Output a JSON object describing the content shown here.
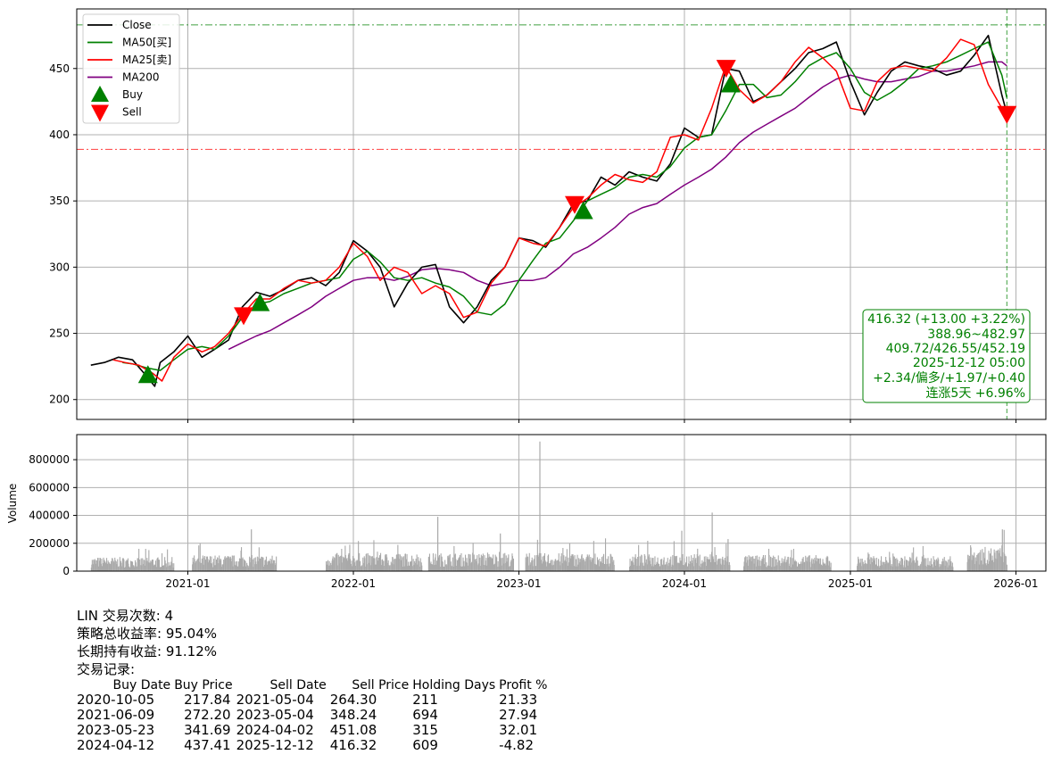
{
  "chart_data": [
    {
      "type": "line",
      "title": "",
      "xlabel": "",
      "ylabel": "",
      "ylim": [
        185,
        495
      ],
      "xlim": [
        "2020-05-01",
        "2026-03-08"
      ],
      "grid": true,
      "legend_placement": "top-left",
      "x_tick_labels": [
        "2021-01",
        "2022-01",
        "2023-01",
        "2024-01",
        "2025-01",
        "2026-01"
      ],
      "y_tick_labels": [
        "200",
        "250",
        "300",
        "350",
        "400",
        "450"
      ],
      "series": [
        {
          "name": "Close",
          "color": "#000000",
          "x": [
            "2020-06-01",
            "2020-07-01",
            "2020-08-01",
            "2020-09-01",
            "2020-10-01",
            "2020-10-20",
            "2020-11-01",
            "2020-12-01",
            "2021-01-01",
            "2021-02-01",
            "2021-03-01",
            "2021-04-01",
            "2021-05-01",
            "2021-06-01",
            "2021-07-01",
            "2021-08-01",
            "2021-09-01",
            "2021-10-01",
            "2021-11-01",
            "2021-12-01",
            "2022-01-01",
            "2022-02-01",
            "2022-03-01",
            "2022-04-01",
            "2022-05-01",
            "2022-06-01",
            "2022-07-01",
            "2022-08-01",
            "2022-09-01",
            "2022-10-01",
            "2022-11-01",
            "2022-12-01",
            "2023-01-01",
            "2023-02-01",
            "2023-03-01",
            "2023-04-01",
            "2023-05-01",
            "2023-06-01",
            "2023-07-01",
            "2023-08-01",
            "2023-09-01",
            "2023-10-01",
            "2023-11-01",
            "2023-12-01",
            "2024-01-01",
            "2024-02-01",
            "2024-03-01",
            "2024-04-01",
            "2024-05-01",
            "2024-06-01",
            "2024-07-01",
            "2024-08-01",
            "2024-09-01",
            "2024-10-01",
            "2024-11-01",
            "2024-12-01",
            "2025-01-01",
            "2025-02-01",
            "2025-03-01",
            "2025-04-01",
            "2025-05-01",
            "2025-06-01",
            "2025-07-01",
            "2025-08-01",
            "2025-09-01",
            "2025-10-01",
            "2025-11-01",
            "2025-12-01",
            "2025-12-12"
          ],
          "y": [
            226,
            228,
            232,
            230,
            218,
            210,
            228,
            236,
            248,
            232,
            238,
            245,
            270,
            281,
            278,
            283,
            290,
            292,
            286,
            296,
            320,
            312,
            300,
            270,
            288,
            300,
            302,
            270,
            258,
            270,
            290,
            300,
            322,
            320,
            315,
            330,
            348,
            350,
            368,
            362,
            372,
            368,
            365,
            378,
            405,
            398,
            400,
            450,
            448,
            425,
            430,
            440,
            450,
            462,
            465,
            470,
            440,
            415,
            432,
            448,
            455,
            452,
            450,
            445,
            448,
            460,
            475,
            430,
            416
          ]
        },
        {
          "name": "MA50[买]",
          "color": "#008000",
          "x": [
            "2020-08-10",
            "2020-09-01",
            "2020-10-01",
            "2020-11-01",
            "2020-12-01",
            "2021-01-01",
            "2021-02-01",
            "2021-03-01",
            "2021-04-01",
            "2021-05-01",
            "2021-06-01",
            "2021-07-01",
            "2021-08-01",
            "2021-09-01",
            "2021-10-01",
            "2021-11-01",
            "2021-12-01",
            "2022-01-01",
            "2022-02-01",
            "2022-03-01",
            "2022-04-01",
            "2022-05-01",
            "2022-06-01",
            "2022-07-01",
            "2022-08-01",
            "2022-09-01",
            "2022-10-01",
            "2022-11-01",
            "2022-12-01",
            "2023-01-01",
            "2023-02-01",
            "2023-03-01",
            "2023-04-01",
            "2023-05-01",
            "2023-06-01",
            "2023-07-01",
            "2023-08-01",
            "2023-09-01",
            "2023-10-01",
            "2023-11-01",
            "2023-12-01",
            "2024-01-01",
            "2024-02-01",
            "2024-03-01",
            "2024-04-01",
            "2024-05-01",
            "2024-06-01",
            "2024-07-01",
            "2024-08-01",
            "2024-09-01",
            "2024-10-01",
            "2024-11-01",
            "2024-12-01",
            "2025-01-01",
            "2025-02-01",
            "2025-03-01",
            "2025-04-01",
            "2025-05-01",
            "2025-06-01",
            "2025-07-01",
            "2025-08-01",
            "2025-09-01",
            "2025-10-01",
            "2025-11-01",
            "2025-12-01",
            "2025-12-12"
          ],
          "y": [
            228,
            227,
            224,
            222,
            230,
            238,
            240,
            238,
            248,
            262,
            272,
            274,
            280,
            284,
            288,
            290,
            292,
            306,
            312,
            304,
            292,
            290,
            292,
            288,
            285,
            278,
            266,
            264,
            272,
            290,
            305,
            318,
            322,
            335,
            350,
            355,
            360,
            368,
            370,
            368,
            376,
            390,
            398,
            400,
            418,
            438,
            438,
            428,
            430,
            440,
            452,
            458,
            462,
            450,
            432,
            426,
            432,
            440,
            450,
            452,
            455,
            460,
            465,
            470,
            445,
            428
          ]
        },
        {
          "name": "MA25[卖]",
          "color": "#ff0000",
          "x": [
            "2020-07-20",
            "2020-08-15",
            "2020-09-15",
            "2020-10-15",
            "2020-11-05",
            "2020-12-01",
            "2021-01-01",
            "2021-02-01",
            "2021-03-01",
            "2021-04-01",
            "2021-05-01",
            "2021-06-01",
            "2021-07-01",
            "2021-08-01",
            "2021-09-01",
            "2021-10-01",
            "2021-11-01",
            "2021-12-01",
            "2022-01-01",
            "2022-02-01",
            "2022-03-01",
            "2022-04-01",
            "2022-05-01",
            "2022-06-01",
            "2022-07-01",
            "2022-08-01",
            "2022-09-01",
            "2022-10-01",
            "2022-11-01",
            "2022-12-01",
            "2023-01-01",
            "2023-02-01",
            "2023-03-01",
            "2023-04-01",
            "2023-05-01",
            "2023-06-01",
            "2023-07-01",
            "2023-08-01",
            "2023-09-01",
            "2023-10-01",
            "2023-11-01",
            "2023-12-01",
            "2024-01-01",
            "2024-02-01",
            "2024-03-01",
            "2024-04-01",
            "2024-05-01",
            "2024-06-01",
            "2024-07-01",
            "2024-08-01",
            "2024-09-01",
            "2024-10-01",
            "2024-11-01",
            "2024-12-01",
            "2025-01-01",
            "2025-02-01",
            "2025-03-01",
            "2025-04-01",
            "2025-05-01",
            "2025-06-01",
            "2025-07-01",
            "2025-08-01",
            "2025-09-01",
            "2025-10-01",
            "2025-11-01",
            "2025-12-01",
            "2025-12-12"
          ],
          "y": [
            230,
            228,
            226,
            220,
            214,
            232,
            242,
            236,
            240,
            250,
            264,
            276,
            276,
            284,
            290,
            288,
            290,
            300,
            318,
            308,
            290,
            300,
            296,
            280,
            286,
            280,
            262,
            266,
            288,
            300,
            322,
            318,
            316,
            330,
            345,
            352,
            362,
            370,
            366,
            364,
            372,
            398,
            400,
            396,
            420,
            452,
            434,
            424,
            430,
            440,
            455,
            466,
            458,
            448,
            420,
            418,
            440,
            450,
            452,
            450,
            448,
            458,
            472,
            468,
            438,
            420,
            417
          ]
        },
        {
          "name": "MA200",
          "color": "#800080",
          "x": [
            "2021-04-01",
            "2021-05-01",
            "2021-06-01",
            "2021-07-01",
            "2021-08-01",
            "2021-09-01",
            "2021-10-01",
            "2021-11-01",
            "2021-12-01",
            "2022-01-01",
            "2022-02-01",
            "2022-03-01",
            "2022-04-01",
            "2022-05-01",
            "2022-06-01",
            "2022-07-01",
            "2022-08-01",
            "2022-09-01",
            "2022-10-01",
            "2022-11-01",
            "2022-12-01",
            "2023-01-01",
            "2023-02-01",
            "2023-03-01",
            "2023-04-01",
            "2023-05-01",
            "2023-06-01",
            "2023-07-01",
            "2023-08-01",
            "2023-09-01",
            "2023-10-01",
            "2023-11-01",
            "2023-12-01",
            "2024-01-01",
            "2024-02-01",
            "2024-03-01",
            "2024-04-01",
            "2024-05-01",
            "2024-06-01",
            "2024-07-01",
            "2024-08-01",
            "2024-09-01",
            "2024-10-01",
            "2024-11-01",
            "2024-12-01",
            "2025-01-01",
            "2025-02-01",
            "2025-03-01",
            "2025-04-01",
            "2025-05-01",
            "2025-06-01",
            "2025-07-01",
            "2025-08-01",
            "2025-09-01",
            "2025-10-01",
            "2025-11-01",
            "2025-12-01",
            "2025-12-12"
          ],
          "y": [
            238,
            243,
            248,
            252,
            258,
            264,
            270,
            278,
            284,
            290,
            292,
            292,
            290,
            293,
            298,
            299,
            298,
            296,
            290,
            286,
            288,
            290,
            290,
            292,
            300,
            310,
            315,
            322,
            330,
            340,
            345,
            348,
            355,
            362,
            368,
            374,
            383,
            394,
            402,
            408,
            414,
            420,
            428,
            436,
            442,
            445,
            442,
            440,
            440,
            442,
            444,
            448,
            448,
            450,
            452,
            455,
            455,
            452
          ]
        }
      ],
      "markers": [
        {
          "name": "Buy",
          "color": "#008000",
          "shape": "triangle-up",
          "points": [
            {
              "x": "2020-10-05",
              "y": 217.84
            },
            {
              "x": "2021-06-09",
              "y": 272.2
            },
            {
              "x": "2023-05-23",
              "y": 341.69
            },
            {
              "x": "2024-04-12",
              "y": 437.41
            }
          ]
        },
        {
          "name": "Sell",
          "color": "#ff0000",
          "shape": "triangle-down",
          "points": [
            {
              "x": "2021-05-04",
              "y": 264.3
            },
            {
              "x": "2023-05-04",
              "y": 348.24
            },
            {
              "x": "2024-04-02",
              "y": 451.08
            },
            {
              "x": "2025-12-12",
              "y": 416.32
            }
          ]
        }
      ],
      "reference_lines": [
        {
          "orientation": "horizontal",
          "value": 482.97,
          "color": "#008000",
          "style": "dash-dot"
        },
        {
          "orientation": "horizontal",
          "value": 388.96,
          "color": "#ff0000",
          "style": "dash-dot"
        },
        {
          "orientation": "vertical",
          "value": "2025-12-12",
          "color": "#008000",
          "style": "dashed"
        }
      ],
      "info_box": {
        "placement": "bottom-right",
        "lines": [
          "416.32 (+13.00 +3.22%)",
          "388.96~482.97",
          "409.72/426.55/452.19",
          "2025-12-12 05:00",
          "+2.34/偏多/+1.97/+0.40",
          "连涨5天 +6.96%"
        ]
      }
    },
    {
      "type": "bar",
      "title": "",
      "xlabel": "",
      "ylabel": "Volume",
      "ylim": [
        0,
        980000
      ],
      "grid": true,
      "bar_color": "#a9a9a9",
      "y_tick_labels": [
        "0",
        "200000",
        "400000",
        "600000",
        "800000"
      ],
      "x_tick_labels": [
        "2021-01",
        "2022-01",
        "2023-01",
        "2024-01",
        "2025-01",
        "2026-01"
      ],
      "clusters": [
        {
          "x_start": "2020-06-01",
          "x_end": "2020-12-01",
          "typical": 70000,
          "max": 160000
        },
        {
          "x_start": "2021-01-10",
          "x_end": "2021-07-15",
          "typical": 80000,
          "max": 300000
        },
        {
          "x_start": "2021-11-01",
          "x_end": "2022-06-01",
          "typical": 90000,
          "max": 240000
        },
        {
          "x_start": "2022-06-15",
          "x_end": "2022-12-20",
          "typical": 90000,
          "max": 390000
        },
        {
          "x_start": "2023-01-15",
          "x_end": "2023-07-30",
          "typical": 90000,
          "max": 930000
        },
        {
          "x_start": "2023-09-01",
          "x_end": "2024-04-10",
          "typical": 85000,
          "max": 420000
        },
        {
          "x_start": "2024-05-10",
          "x_end": "2024-11-20",
          "typical": 80000,
          "max": 160000
        },
        {
          "x_start": "2025-01-15",
          "x_end": "2025-08-15",
          "typical": 75000,
          "max": 180000
        },
        {
          "x_start": "2025-09-15",
          "x_end": "2025-12-12",
          "typical": 120000,
          "max": 300000
        }
      ],
      "peaks": [
        {
          "x": "2023-02-15",
          "value": 930000
        },
        {
          "x": "2024-03-01",
          "value": 420000
        },
        {
          "x": "2022-07-05",
          "value": 390000
        },
        {
          "x": "2021-05-20",
          "value": 300000
        },
        {
          "x": "2023-12-25",
          "value": 290000
        },
        {
          "x": "2025-12-01",
          "value": 300000
        },
        {
          "x": "2022-11-20",
          "value": 270000
        },
        {
          "x": "2024-04-05",
          "value": 230000
        }
      ]
    }
  ],
  "legend": [
    {
      "label": "Close",
      "color": "#000000",
      "kind": "line"
    },
    {
      "label": "MA50[买]",
      "color": "#008000",
      "kind": "line"
    },
    {
      "label": "MA25[卖]",
      "color": "#ff0000",
      "kind": "line"
    },
    {
      "label": "MA200",
      "color": "#800080",
      "kind": "line"
    },
    {
      "label": "Buy",
      "color": "#008000",
      "kind": "triangle-up"
    },
    {
      "label": "Sell",
      "color": "#ff0000",
      "kind": "triangle-down"
    }
  ],
  "summary": {
    "trade_count": "LIN 交易次数: 4",
    "strategy_return": "策略总收益率: 95.04%",
    "hold_return": "长期持有收益: 91.12%",
    "records_title": "交易记录:",
    "columns": [
      "Buy Date",
      "Buy Price",
      "Sell Date",
      "Sell Price",
      "Holding Days",
      "Profit %"
    ],
    "rows": [
      [
        "2020-10-05",
        "217.84",
        "2021-05-04",
        "264.30",
        "211",
        "21.33"
      ],
      [
        "2021-06-09",
        "272.20",
        "2023-05-04",
        "348.24",
        "694",
        "27.94"
      ],
      [
        "2023-05-23",
        "341.69",
        "2024-04-02",
        "451.08",
        "315",
        "32.01"
      ],
      [
        "2024-04-12",
        "437.41",
        "2025-12-12",
        "416.32",
        "609",
        "-4.82"
      ]
    ]
  }
}
